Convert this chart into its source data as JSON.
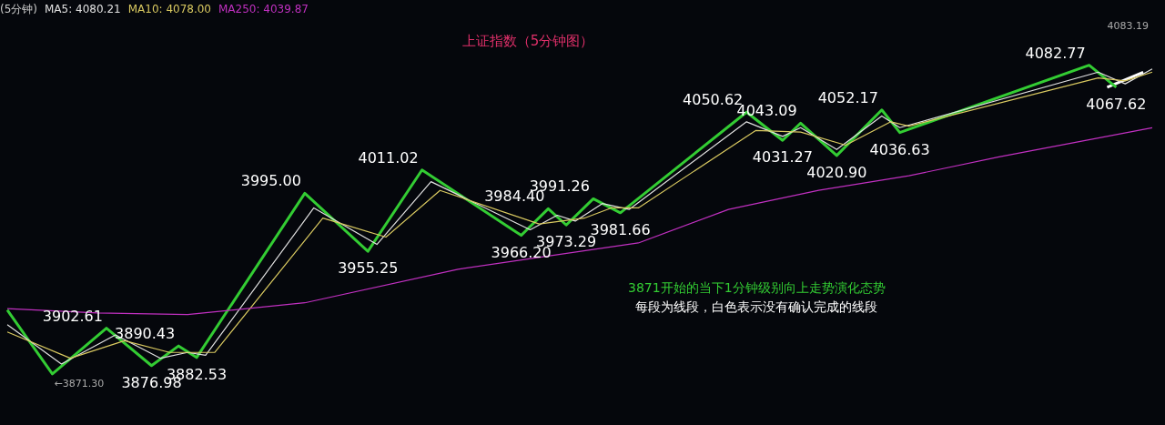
{
  "chart_data": {
    "type": "line",
    "title": "上证指数（5分钟图）",
    "subtitle": "(5分钟)",
    "categories": [
      null,
      null,
      null,
      null,
      null,
      null,
      null,
      null,
      null,
      null,
      null,
      null,
      null,
      null,
      null,
      null,
      null,
      null,
      null,
      null,
      null,
      null,
      null,
      null,
      null,
      null,
      null,
      null,
      null,
      null,
      null,
      null,
      null,
      null,
      null,
      null,
      null,
      null,
      null,
      null,
      null,
      null,
      null,
      null,
      null,
      null,
      null,
      null,
      null,
      null,
      null,
      null,
      null,
      null,
      null,
      null,
      null,
      null,
      null,
      null,
      null,
      null,
      null,
      null,
      null,
      null,
      null,
      null,
      null,
      null,
      null,
      null,
      null,
      null,
      null,
      null,
      null,
      null,
      null,
      null,
      null,
      null,
      null,
      null,
      null,
      null,
      null,
      null,
      null,
      null,
      null,
      null,
      null,
      null,
      null,
      null,
      null,
      null,
      null,
      null,
      null,
      null,
      null,
      null,
      null,
      null,
      null,
      null,
      null,
      null,
      null,
      null,
      null,
      null,
      null,
      null,
      null,
      null,
      null,
      null,
      null,
      null,
      null,
      null,
      null,
      null,
      null,
      null
    ],
    "tick_labels": false,
    "grid": false,
    "legend": "top left",
    "marker": "none",
    "series": [
      {
        "name": "MA250: 4039.87",
        "color": "#c030c0",
        "values": [
          3916,
          null,
          null,
          null,
          null,
          null,
          null,
          null,
          null,
          null,
          3913,
          null,
          null,
          null,
          null,
          null,
          null,
          null,
          null,
          null,
          3912,
          null,
          null,
          null,
          null,
          null,
          null,
          null,
          null,
          null,
          null,
          null,
          null,
          3920,
          null,
          null,
          null,
          null,
          null,
          null,
          null,
          null,
          null,
          null,
          null,
          null,
          null,
          null,
          null,
          null,
          3943,
          null,
          null,
          null,
          null,
          null,
          null,
          null,
          null,
          null,
          null,
          null,
          null,
          null,
          null,
          null,
          null,
          null,
          null,
          null,
          3961,
          null,
          null,
          null,
          null,
          null,
          null,
          null,
          null,
          null,
          3984,
          null,
          null,
          null,
          null,
          null,
          null,
          null,
          null,
          null,
          3997,
          null,
          null,
          null,
          null,
          null,
          null,
          null,
          null,
          null,
          4007,
          null,
          null,
          null,
          null,
          null,
          null,
          null,
          null,
          null,
          4020,
          null,
          null,
          null,
          null,
          null,
          null,
          null,
          null,
          null,
          null,
          null,
          null,
          null,
          null,
          null,
          null,
          4039.87
        ]
      },
      {
        "name": "MA10: 4078.00",
        "color": "#d8c860",
        "values": [
          3900,
          null,
          null,
          null,
          null,
          null,
          null,
          3882,
          null,
          null,
          null,
          null,
          null,
          3894,
          null,
          null,
          null,
          null,
          3886,
          null,
          null,
          null,
          null,
          3886,
          null,
          null,
          null,
          null,
          null,
          null,
          null,
          null,
          null,
          null,
          null,
          3978,
          null,
          null,
          null,
          null,
          null,
          null,
          3965,
          null,
          null,
          null,
          null,
          null,
          3997,
          null,
          null,
          null,
          null,
          null,
          null,
          null,
          null,
          null,
          null,
          3974,
          null,
          null,
          null,
          null,
          3978,
          null,
          null,
          3985,
          null,
          null,
          3985,
          null,
          null,
          null,
          null,
          null,
          null,
          null,
          null,
          null,
          null,
          null,
          null,
          4038,
          null,
          null,
          null,
          null,
          4037,
          null,
          null,
          null,
          null,
          4028,
          null,
          null,
          null,
          null,
          4044,
          null,
          4041,
          null,
          null,
          null,
          null,
          null,
          null,
          null,
          null,
          null,
          null,
          null,
          null,
          null,
          null,
          null,
          null,
          null,
          null,
          null,
          null,
          4074,
          null,
          null,
          4072,
          null,
          null,
          4078.0
        ]
      },
      {
        "name": "MA5: 4080.21",
        "color": "#e0e0e0",
        "values": [
          3905,
          null,
          null,
          null,
          null,
          null,
          3878,
          null,
          null,
          null,
          null,
          null,
          3898,
          null,
          null,
          null,
          null,
          3882,
          null,
          null,
          3886,
          null,
          3884,
          null,
          null,
          null,
          null,
          null,
          null,
          null,
          null,
          null,
          null,
          null,
          3985,
          null,
          null,
          null,
          null,
          null,
          null,
          3960,
          null,
          null,
          null,
          null,
          null,
          4003,
          null,
          null,
          null,
          null,
          null,
          null,
          null,
          null,
          null,
          null,
          3970,
          null,
          null,
          3980,
          null,
          3976,
          null,
          null,
          3988,
          null,
          null,
          3984,
          null,
          null,
          null,
          null,
          null,
          null,
          null,
          null,
          null,
          null,
          null,
          null,
          4044,
          null,
          null,
          null,
          4034,
          null,
          4040,
          null,
          null,
          null,
          4025,
          null,
          null,
          null,
          null,
          4048,
          null,
          4040,
          null,
          null,
          null,
          null,
          null,
          null,
          null,
          null,
          null,
          null,
          null,
          null,
          null,
          null,
          null,
          null,
          null,
          null,
          null,
          null,
          null,
          4078,
          null,
          null,
          4070,
          null,
          null,
          4080.21
        ]
      },
      {
        "color": "#33cc33",
        "values": [
          3915,
          null,
          null,
          null,
          null,
          3871.3,
          null,
          null,
          null,
          null,
          null,
          3902.61,
          null,
          null,
          null,
          null,
          3876.98,
          null,
          null,
          3890.43,
          null,
          3882.53,
          null,
          null,
          null,
          null,
          null,
          null,
          null,
          null,
          null,
          null,
          null,
          3995.0,
          null,
          null,
          null,
          null,
          null,
          null,
          3955.25,
          null,
          null,
          null,
          null,
          null,
          4011.02,
          null,
          null,
          null,
          null,
          null,
          null,
          null,
          null,
          null,
          null,
          3966.2,
          null,
          null,
          3984.4,
          null,
          3973.29,
          null,
          null,
          3991.26,
          null,
          null,
          3981.66,
          null,
          null,
          null,
          null,
          null,
          null,
          null,
          null,
          null,
          null,
          null,
          null,
          null,
          4050.62,
          null,
          null,
          null,
          4031.27,
          null,
          4043.09,
          null,
          null,
          null,
          4020.9,
          null,
          null,
          null,
          null,
          4052.17,
          null,
          4036.63,
          null,
          null,
          null,
          null,
          null,
          null,
          null,
          null,
          null,
          null,
          null,
          null,
          null,
          null,
          null,
          null,
          null,
          null,
          null,
          null,
          4082.77,
          null,
          null,
          4067.62,
          null,
          null,
          null,
          null
        ],
        "value_labels": [
          null,
          null,
          null,
          null,
          null,
          "←3871.30",
          null,
          null,
          null,
          null,
          null,
          "3902.61",
          null,
          null,
          null,
          null,
          "3876.98",
          null,
          null,
          "3890.43",
          null,
          "3882.53",
          null,
          null,
          null,
          null,
          null,
          null,
          null,
          null,
          null,
          null,
          null,
          "3995.00",
          null,
          null,
          null,
          null,
          null,
          null,
          "3955.25",
          null,
          null,
          null,
          null,
          null,
          "4011.02",
          null,
          null,
          null,
          null,
          null,
          null,
          null,
          null,
          null,
          null,
          "3966.20",
          null,
          null,
          "3984.40",
          null,
          "3973.29",
          null,
          null,
          "3991.26",
          null,
          null,
          "3981.66",
          null,
          null,
          null,
          null,
          null,
          null,
          null,
          null,
          null,
          null,
          null,
          null,
          null,
          "4050.62",
          null,
          null,
          null,
          "4031.27",
          null,
          "4043.09",
          null,
          null,
          null,
          "4020.90",
          null,
          null,
          null,
          null,
          "4052.17",
          null,
          "4036.63",
          null,
          null,
          null,
          null,
          null,
          null,
          null,
          null,
          null,
          null,
          null,
          null,
          null,
          null,
          null,
          null,
          null,
          null,
          null,
          null,
          "4082.77",
          null,
          null,
          "4067.62",
          null,
          null,
          null,
          null
        ]
      },
      {
        "color": "#ffffff",
        "values": [
          null,
          null,
          null,
          null,
          null,
          null,
          null,
          null,
          null,
          null,
          null,
          null,
          null,
          null,
          null,
          null,
          null,
          null,
          null,
          null,
          null,
          null,
          null,
          null,
          null,
          null,
          null,
          null,
          null,
          null,
          null,
          null,
          null,
          null,
          null,
          null,
          null,
          null,
          null,
          null,
          null,
          null,
          null,
          null,
          null,
          null,
          null,
          null,
          null,
          null,
          null,
          null,
          null,
          null,
          null,
          null,
          null,
          null,
          null,
          null,
          null,
          null,
          null,
          null,
          null,
          null,
          null,
          null,
          null,
          null,
          null,
          null,
          null,
          null,
          null,
          null,
          null,
          null,
          null,
          null,
          null,
          null,
          null,
          null,
          null,
          null,
          null,
          null,
          null,
          null,
          null,
          null,
          null,
          null,
          null,
          null,
          null,
          null,
          null,
          null,
          null,
          null,
          null,
          null,
          null,
          null,
          null,
          null,
          null,
          null,
          null,
          null,
          null,
          null,
          null,
          null,
          null,
          null,
          null,
          null,
          null,
          null,
          4067.62,
          null,
          null,
          null,
          4078,
          null
        ]
      }
    ],
    "annotations": [
      "3871开始的当下1分钟级别向上走势演化态势",
      "每段为线段，白色表示没有确认完成的线段",
      "4083.19"
    ]
  }
}
